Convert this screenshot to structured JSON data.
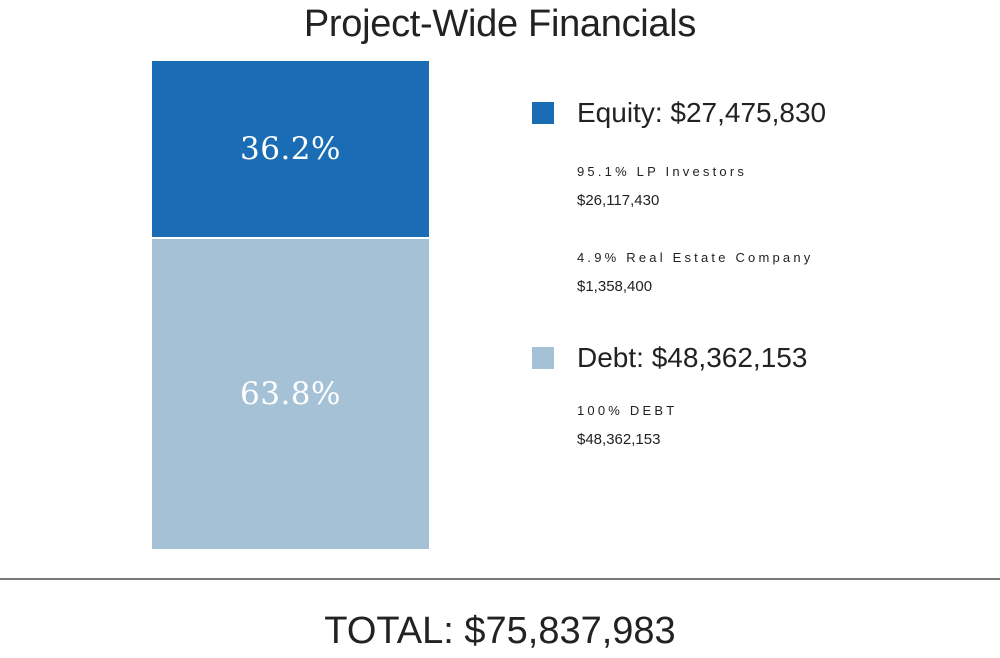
{
  "title": "Project-Wide Financials",
  "chart_data": {
    "type": "bar",
    "stacked": true,
    "title": "Project-Wide Financials",
    "categories": [
      ""
    ],
    "series": [
      {
        "name": "Equity",
        "values": [
          36.2
        ],
        "label": "36.2%",
        "color": "#1a6db5"
      },
      {
        "name": "Debt",
        "values": [
          63.8
        ],
        "label": "63.8%",
        "color": "#a4c1d6"
      }
    ],
    "unit": "%",
    "ylim": [
      0,
      100
    ],
    "legend_position": "right"
  },
  "legend": {
    "equity": {
      "heading": "Equity: $27,475,830",
      "color": "#1a6db5",
      "items": [
        {
          "label": "95.1% LP Investors",
          "value": "$26,117,430"
        },
        {
          "label": "4.9% Real Estate Company",
          "value": "$1,358,400"
        }
      ]
    },
    "debt": {
      "heading": "Debt: $48,362,153",
      "color": "#a4c1d6",
      "items": [
        {
          "label": "100% DEBT",
          "value": "$48,362,153"
        }
      ]
    }
  },
  "total": "TOTAL: $75,837,983"
}
